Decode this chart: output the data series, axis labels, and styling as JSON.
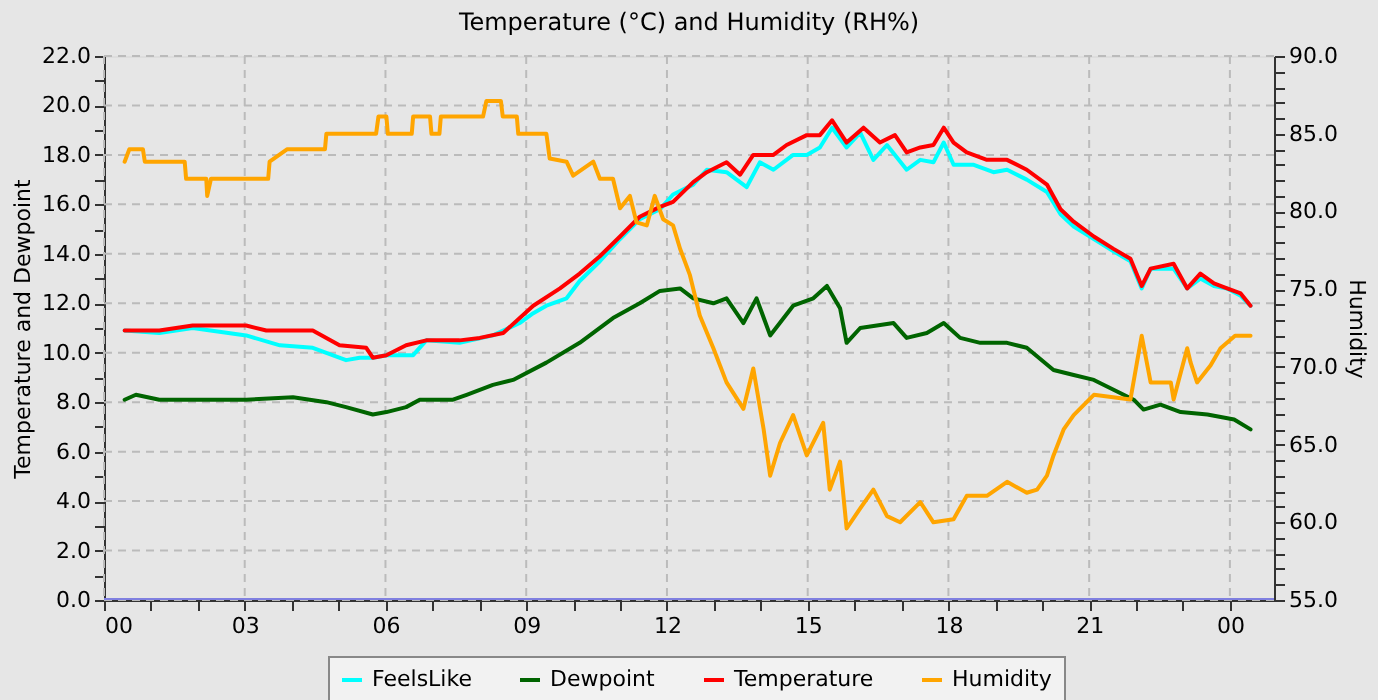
{
  "chart_data": {
    "type": "line",
    "title": "Temperature (°C) and Humidity (RH%)",
    "ylabel": "Temperature and Dewpoint",
    "y2label": "Humidity",
    "xlim": [
      0,
      24.94
    ],
    "ylim": [
      0,
      22
    ],
    "y2lim": [
      55,
      90
    ],
    "xticks": [
      {
        "value": 0,
        "label": "00"
      },
      {
        "value": 1,
        "label": null
      },
      {
        "value": 2,
        "label": null
      },
      {
        "value": 3,
        "label": "03"
      },
      {
        "value": 4,
        "label": null
      },
      {
        "value": 5,
        "label": null
      },
      {
        "value": 6,
        "label": "06"
      },
      {
        "value": 7,
        "label": null
      },
      {
        "value": 8,
        "label": null
      },
      {
        "value": 9,
        "label": "09"
      },
      {
        "value": 10,
        "label": null
      },
      {
        "value": 11,
        "label": null
      },
      {
        "value": 12,
        "label": "12"
      },
      {
        "value": 13,
        "label": null
      },
      {
        "value": 14,
        "label": null
      },
      {
        "value": 15,
        "label": "15"
      },
      {
        "value": 16,
        "label": null
      },
      {
        "value": 17,
        "label": null
      },
      {
        "value": 18,
        "label": "18"
      },
      {
        "value": 19,
        "label": null
      },
      {
        "value": 20,
        "label": null
      },
      {
        "value": 21,
        "label": "21"
      },
      {
        "value": 22,
        "label": null
      },
      {
        "value": 23,
        "label": null
      },
      {
        "value": 24,
        "label": "00"
      }
    ],
    "yticks": [
      {
        "value": 0,
        "label": "0.0"
      },
      {
        "value": 1,
        "label": null
      },
      {
        "value": 2,
        "label": "2.0"
      },
      {
        "value": 3,
        "label": null
      },
      {
        "value": 4,
        "label": "4.0"
      },
      {
        "value": 5,
        "label": null
      },
      {
        "value": 6,
        "label": "6.0"
      },
      {
        "value": 7,
        "label": null
      },
      {
        "value": 8,
        "label": "8.0"
      },
      {
        "value": 9,
        "label": null
      },
      {
        "value": 10,
        "label": "10.0"
      },
      {
        "value": 11,
        "label": null
      },
      {
        "value": 12,
        "label": "12.0"
      },
      {
        "value": 13,
        "label": null
      },
      {
        "value": 14,
        "label": "14.0"
      },
      {
        "value": 15,
        "label": null
      },
      {
        "value": 16,
        "label": "16.0"
      },
      {
        "value": 17,
        "label": null
      },
      {
        "value": 18,
        "label": "18.0"
      },
      {
        "value": 19,
        "label": null
      },
      {
        "value": 20,
        "label": "20.0"
      },
      {
        "value": 21,
        "label": null
      },
      {
        "value": 22,
        "label": "22.0"
      }
    ],
    "y2ticks": [
      {
        "value": 55,
        "label": "55.0"
      },
      {
        "value": 56,
        "label": null
      },
      {
        "value": 57,
        "label": null
      },
      {
        "value": 58,
        "label": null
      },
      {
        "value": 59,
        "label": null
      },
      {
        "value": 60,
        "label": "60.0"
      },
      {
        "value": 61,
        "label": null
      },
      {
        "value": 62,
        "label": null
      },
      {
        "value": 63,
        "label": null
      },
      {
        "value": 64,
        "label": null
      },
      {
        "value": 65,
        "label": "65.0"
      },
      {
        "value": 66,
        "label": null
      },
      {
        "value": 67,
        "label": null
      },
      {
        "value": 68,
        "label": null
      },
      {
        "value": 69,
        "label": null
      },
      {
        "value": 70,
        "label": "70.0"
      },
      {
        "value": 71,
        "label": null
      },
      {
        "value": 72,
        "label": null
      },
      {
        "value": 73,
        "label": null
      },
      {
        "value": 74,
        "label": null
      },
      {
        "value": 75,
        "label": "75.0"
      },
      {
        "value": 76,
        "label": null
      },
      {
        "value": 77,
        "label": null
      },
      {
        "value": 78,
        "label": null
      },
      {
        "value": 79,
        "label": null
      },
      {
        "value": 80,
        "label": "80.0"
      },
      {
        "value": 81,
        "label": null
      },
      {
        "value": 82,
        "label": null
      },
      {
        "value": 83,
        "label": null
      },
      {
        "value": 84,
        "label": null
      },
      {
        "value": 85,
        "label": "85.0"
      },
      {
        "value": 86,
        "label": null
      },
      {
        "value": 87,
        "label": null
      },
      {
        "value": 88,
        "label": null
      },
      {
        "value": 89,
        "label": null
      },
      {
        "value": 90,
        "label": "90.0"
      }
    ],
    "grid": true,
    "legend": "bottom",
    "marker": "none",
    "line_style": "solid",
    "series": [
      {
        "name": "FeelsLike",
        "color": "#00ffff",
        "x": [
          0.44,
          1.18,
          1.89,
          3.03,
          3.75,
          4.45,
          5.16,
          5.45,
          5.73,
          6.02,
          6.59,
          6.87,
          7.58,
          8.29,
          8.86,
          9.15,
          9.43,
          9.86,
          10.14,
          10.57,
          11.0,
          11.42,
          11.85,
          12.13,
          12.56,
          12.85,
          13.27,
          13.7,
          13.98,
          14.27,
          14.69,
          14.98,
          15.26,
          15.52,
          15.83,
          16.12,
          16.4,
          16.69,
          17.11,
          17.4,
          17.68,
          17.9,
          18.11,
          18.54,
          18.96,
          19.25,
          19.67,
          20.1,
          20.39,
          20.67,
          21.1,
          21.52,
          21.88,
          22.12,
          22.31,
          22.8,
          23.09,
          23.37,
          23.66,
          23.94,
          24.23,
          24.44
        ],
        "values": [
          10.9,
          10.8,
          11.0,
          10.7,
          10.3,
          10.2,
          9.7,
          9.8,
          9.8,
          9.9,
          9.9,
          10.5,
          10.4,
          10.7,
          11.2,
          11.6,
          11.9,
          12.2,
          12.9,
          13.7,
          14.6,
          15.4,
          15.8,
          16.4,
          16.8,
          17.4,
          17.3,
          16.7,
          17.7,
          17.4,
          18.0,
          18.0,
          18.3,
          19.1,
          18.3,
          18.9,
          17.8,
          18.4,
          17.4,
          17.8,
          17.7,
          18.5,
          17.6,
          17.6,
          17.3,
          17.4,
          17.0,
          16.5,
          15.6,
          15.1,
          14.6,
          14.1,
          13.7,
          12.6,
          13.4,
          13.4,
          12.6,
          13.0,
          12.7,
          12.6,
          12.3,
          11.9
        ]
      },
      {
        "name": "Dewpoint",
        "color": "#006400",
        "x": [
          0.44,
          0.68,
          1.18,
          1.89,
          3.03,
          4.03,
          4.74,
          5.16,
          5.73,
          6.02,
          6.44,
          6.73,
          7.44,
          7.73,
          8.29,
          8.72,
          9.43,
          10.14,
          10.85,
          11.42,
          11.85,
          12.28,
          12.56,
          12.99,
          13.27,
          13.63,
          13.91,
          14.2,
          14.69,
          15.12,
          15.41,
          15.69,
          15.83,
          16.12,
          16.83,
          17.11,
          17.54,
          17.9,
          18.25,
          18.68,
          19.25,
          19.67,
          20.24,
          20.67,
          21.1,
          21.52,
          21.95,
          22.16,
          22.52,
          22.95,
          23.52,
          24.09,
          24.44
        ],
        "values": [
          8.1,
          8.3,
          8.1,
          8.1,
          8.1,
          8.2,
          8.0,
          7.8,
          7.5,
          7.6,
          7.8,
          8.1,
          8.1,
          8.3,
          8.7,
          8.9,
          9.6,
          10.4,
          11.4,
          12.0,
          12.5,
          12.6,
          12.2,
          12.0,
          12.2,
          11.2,
          12.2,
          10.7,
          11.9,
          12.2,
          12.7,
          11.8,
          10.4,
          11.0,
          11.2,
          10.6,
          10.8,
          11.2,
          10.6,
          10.4,
          10.4,
          10.2,
          9.3,
          9.1,
          8.9,
          8.5,
          8.1,
          7.7,
          7.9,
          7.6,
          7.5,
          7.3,
          6.9
        ]
      },
      {
        "name": "Temperature",
        "color": "#ff0000",
        "x": [
          0.44,
          1.18,
          1.89,
          3.03,
          3.46,
          4.45,
          5.02,
          5.59,
          5.73,
          6.02,
          6.44,
          6.87,
          7.58,
          8.01,
          8.51,
          9.15,
          9.72,
          10.14,
          10.57,
          11.0,
          11.42,
          11.85,
          12.13,
          12.56,
          12.85,
          13.27,
          13.56,
          13.84,
          14.27,
          14.55,
          14.98,
          15.26,
          15.52,
          15.83,
          16.19,
          16.54,
          16.86,
          17.11,
          17.4,
          17.68,
          17.9,
          18.11,
          18.39,
          18.82,
          19.25,
          19.67,
          20.1,
          20.39,
          20.67,
          21.1,
          21.52,
          21.88,
          22.12,
          22.31,
          22.8,
          23.09,
          23.37,
          23.66,
          23.94,
          24.23,
          24.44
        ],
        "values": [
          10.9,
          10.9,
          11.1,
          11.1,
          10.9,
          10.9,
          10.3,
          10.2,
          9.8,
          9.9,
          10.3,
          10.5,
          10.5,
          10.6,
          10.8,
          11.9,
          12.6,
          13.2,
          13.9,
          14.7,
          15.5,
          15.9,
          16.1,
          16.9,
          17.3,
          17.7,
          17.2,
          18.0,
          18.0,
          18.4,
          18.8,
          18.8,
          19.4,
          18.5,
          19.1,
          18.5,
          18.8,
          18.1,
          18.3,
          18.4,
          19.1,
          18.5,
          18.1,
          17.8,
          17.8,
          17.4,
          16.8,
          15.8,
          15.3,
          14.7,
          14.2,
          13.8,
          12.7,
          13.4,
          13.6,
          12.6,
          13.2,
          12.8,
          12.6,
          12.4,
          11.9
        ]
      },
      {
        "name": "Humidity",
        "color": "#ffa500",
        "axis": "y2",
        "x": [
          0.44,
          0.54,
          0.83,
          0.87,
          1.72,
          1.75,
          2.18,
          2.2,
          2.28,
          3.5,
          3.53,
          3.9,
          4.71,
          4.74,
          5.8,
          5.85,
          6.02,
          6.05,
          6.56,
          6.59,
          6.95,
          6.98,
          7.15,
          7.18,
          8.08,
          8.15,
          8.46,
          8.5,
          8.8,
          8.83,
          9.43,
          9.5,
          9.86,
          10.0,
          10.43,
          10.57,
          10.85,
          11.0,
          11.21,
          11.35,
          11.57,
          11.74,
          11.92,
          12.13,
          12.28,
          12.49,
          12.7,
          12.99,
          13.27,
          13.63,
          13.84,
          14.06,
          14.2,
          14.41,
          14.69,
          14.98,
          15.33,
          15.47,
          15.69,
          15.83,
          16.12,
          16.4,
          16.69,
          16.97,
          17.4,
          17.68,
          18.11,
          18.39,
          18.82,
          19.25,
          19.67,
          19.89,
          20.1,
          20.24,
          20.46,
          20.67,
          21.1,
          21.88,
          22.02,
          22.12,
          22.31,
          22.74,
          22.8,
          23.09,
          23.16,
          23.3,
          23.59,
          23.8,
          24.11,
          24.44
        ],
        "values": [
          83.2,
          84.0,
          84.0,
          83.2,
          83.2,
          82.1,
          82.1,
          81.0,
          82.1,
          82.1,
          83.2,
          84.0,
          84.0,
          85.0,
          85.0,
          86.1,
          86.1,
          85.0,
          85.0,
          86.1,
          86.1,
          85.0,
          85.0,
          86.1,
          86.1,
          87.1,
          87.1,
          86.1,
          86.1,
          85.0,
          85.0,
          83.4,
          83.2,
          82.3,
          83.2,
          82.1,
          82.1,
          80.2,
          81.0,
          79.3,
          79.1,
          81.0,
          79.5,
          79.1,
          77.6,
          75.9,
          73.3,
          71.2,
          69.0,
          67.3,
          69.9,
          66.0,
          63.0,
          65.1,
          66.9,
          64.3,
          66.4,
          62.1,
          63.9,
          59.6,
          60.9,
          62.1,
          60.4,
          60.0,
          61.3,
          60.0,
          60.2,
          61.7,
          61.7,
          62.6,
          61.9,
          62.1,
          63.0,
          64.3,
          66.0,
          66.9,
          68.2,
          67.9,
          70.3,
          72.0,
          69.0,
          69.0,
          67.9,
          71.2,
          70.3,
          69.0,
          70.1,
          71.2,
          72.0,
          72.0
        ]
      },
      {
        "color": "#8080e0",
        "x": [
          0,
          24.94
        ],
        "values": [
          0,
          0
        ]
      }
    ]
  }
}
